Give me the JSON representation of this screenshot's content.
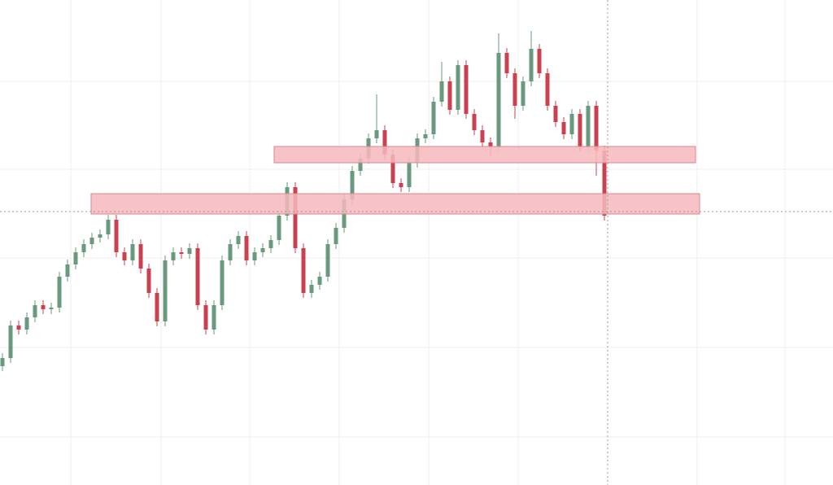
{
  "chart_data": {
    "type": "candlestick",
    "xlim": [
      -0.3,
      102.1
    ],
    "ylim": [
      0,
      596
    ],
    "xticks": [
      8.4,
      19.5,
      30.4,
      41.4,
      52.4,
      63.4,
      85.4,
      96.2
    ],
    "yticks": [
      496,
      388,
      279,
      169,
      59
    ],
    "grid": true,
    "up_color": "#6a9a7e",
    "down_color": "#c9424f",
    "zone_color": "#f7b8bd",
    "zone_edge": "#d98a92",
    "crosshair": {
      "x": 74.4,
      "y": 336
    },
    "zones": [
      {
        "x0": 33.4,
        "x1": 85.2,
        "y0": 396,
        "y1": 416
      },
      {
        "x0": 10.9,
        "x1": 85.7,
        "y0": 333,
        "y1": 358
      }
    ],
    "open": [
      146,
      156,
      196,
      191,
      206,
      221,
      216,
      218,
      256,
      271,
      286,
      296,
      304,
      308,
      326,
      286,
      276,
      296,
      266,
      236,
      201,
      276,
      286,
      284,
      291,
      221,
      191,
      221,
      276,
      296,
      306,
      276,
      286,
      291,
      301,
      331,
      366,
      291,
      236,
      246,
      256,
      296,
      316,
      351,
      386,
      401,
      426,
      436,
      406,
      371,
      366,
      396,
      426,
      431,
      471,
      496,
      461,
      516,
      456,
      436,
      421,
      416,
      531,
      506,
      466,
      496,
      536,
      506,
      466,
      446,
      431,
      456,
      416,
      466,
      411
    ],
    "high": [
      162,
      202,
      202,
      212,
      227,
      227,
      224,
      262,
      277,
      292,
      302,
      310,
      314,
      332,
      332,
      292,
      302,
      302,
      272,
      242,
      282,
      292,
      292,
      297,
      297,
      227,
      227,
      282,
      302,
      312,
      312,
      292,
      297,
      307,
      337,
      372,
      372,
      297,
      252,
      262,
      302,
      322,
      357,
      392,
      407,
      432,
      480,
      442,
      412,
      377,
      402,
      432,
      437,
      477,
      520,
      502,
      522,
      522,
      462,
      442,
      427,
      555,
      537,
      512,
      502,
      558,
      542,
      512,
      472,
      452,
      462,
      462,
      472,
      472,
      417
    ],
    "low": [
      140,
      150,
      185,
      185,
      200,
      210,
      210,
      212,
      250,
      265,
      280,
      290,
      298,
      302,
      280,
      270,
      270,
      260,
      230,
      195,
      195,
      270,
      278,
      278,
      215,
      185,
      185,
      215,
      270,
      290,
      270,
      270,
      280,
      285,
      295,
      325,
      285,
      230,
      230,
      240,
      250,
      290,
      310,
      345,
      380,
      395,
      420,
      400,
      365,
      360,
      360,
      390,
      420,
      425,
      465,
      455,
      455,
      450,
      430,
      415,
      405,
      410,
      500,
      450,
      460,
      490,
      500,
      460,
      440,
      425,
      425,
      410,
      410,
      380,
      325
    ],
    "close": [
      156,
      196,
      191,
      206,
      221,
      216,
      218,
      256,
      271,
      286,
      296,
      304,
      308,
      326,
      286,
      276,
      296,
      266,
      236,
      201,
      276,
      286,
      284,
      291,
      221,
      191,
      221,
      276,
      296,
      306,
      276,
      286,
      291,
      301,
      331,
      366,
      291,
      236,
      246,
      256,
      296,
      316,
      351,
      386,
      401,
      426,
      436,
      406,
      371,
      366,
      396,
      426,
      431,
      471,
      496,
      461,
      516,
      456,
      436,
      421,
      416,
      531,
      506,
      466,
      496,
      536,
      506,
      466,
      446,
      431,
      456,
      416,
      466,
      411,
      331
    ]
  }
}
